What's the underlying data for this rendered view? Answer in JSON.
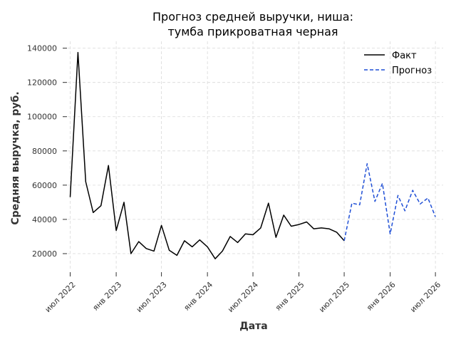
{
  "chart_data": {
    "type": "line",
    "title_lines": [
      "Прогноз средней выручки, ниша:",
      "тумба прикроватная черная"
    ],
    "xlabel": "Дата",
    "ylabel": "Средняя выручка, руб.",
    "x_ticks": [
      {
        "date": "2022-07-01",
        "label": "июл 2022"
      },
      {
        "date": "2023-01-01",
        "label": "янв 2023"
      },
      {
        "date": "2023-07-01",
        "label": "июл 2023"
      },
      {
        "date": "2024-01-01",
        "label": "янв 2024"
      },
      {
        "date": "2024-07-01",
        "label": "июл 2024"
      },
      {
        "date": "2025-01-01",
        "label": "янв 2025"
      },
      {
        "date": "2025-07-01",
        "label": "июл 2025"
      },
      {
        "date": "2026-01-01",
        "label": "янв 2026"
      },
      {
        "date": "2026-07-01",
        "label": "июл 2026"
      }
    ],
    "y_ticks": [
      20000,
      40000,
      60000,
      80000,
      100000,
      120000,
      140000
    ],
    "ylim": [
      10000,
      144000
    ],
    "xlim": [
      "2022-06-01",
      "2026-08-01"
    ],
    "grid": true,
    "legend_position": "top-right",
    "series": [
      {
        "name": "Факт",
        "color": "#000000",
        "style": "solid",
        "x": [
          "2022-07-01",
          "2022-08-01",
          "2022-09-01",
          "2022-10-01",
          "2022-11-01",
          "2022-12-01",
          "2023-01-01",
          "2023-02-01",
          "2023-03-01",
          "2023-04-01",
          "2023-05-01",
          "2023-06-01",
          "2023-07-01",
          "2023-08-01",
          "2023-09-01",
          "2023-10-01",
          "2023-11-01",
          "2023-12-01",
          "2024-01-01",
          "2024-02-01",
          "2024-03-01",
          "2024-04-01",
          "2024-05-01",
          "2024-06-01",
          "2024-07-01",
          "2024-08-01",
          "2024-09-01",
          "2024-10-01",
          "2024-11-01",
          "2024-12-01",
          "2025-01-01",
          "2025-02-01",
          "2025-03-01",
          "2025-04-01",
          "2025-05-01",
          "2025-06-01",
          "2025-07-01"
        ],
        "values": [
          53000,
          137500,
          62000,
          44000,
          48000,
          71500,
          33500,
          50000,
          20000,
          27000,
          23000,
          21500,
          36500,
          22000,
          19000,
          27500,
          24000,
          28000,
          24000,
          17000,
          21500,
          30000,
          26500,
          31500,
          31000,
          35000,
          49500,
          29500,
          42500,
          36000,
          37000,
          38500,
          34500,
          35000,
          34500,
          32500,
          27500
        ]
      },
      {
        "name": "Прогноз",
        "color": "#1f4fd6",
        "style": "dashed",
        "x": [
          "2025-07-01",
          "2025-08-01",
          "2025-09-01",
          "2025-10-01",
          "2025-11-01",
          "2025-12-01",
          "2026-01-01",
          "2026-02-01",
          "2026-03-01",
          "2026-04-01",
          "2026-05-01",
          "2026-06-01",
          "2026-07-01"
        ],
        "values": [
          27500,
          49500,
          48500,
          72500,
          50500,
          61000,
          31500,
          54000,
          45000,
          57000,
          49000,
          52500,
          41500
        ]
      }
    ]
  }
}
